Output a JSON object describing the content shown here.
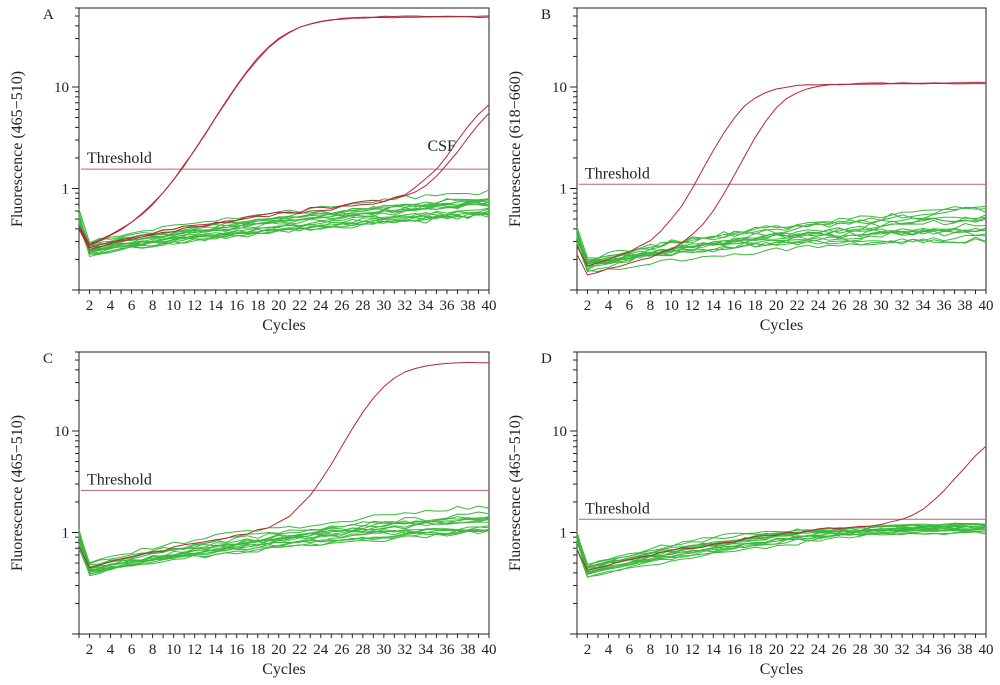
{
  "colors": {
    "positive": "#b02a3a",
    "negative": "#3cb83c",
    "threshold": "#c06070",
    "axis": "#222222"
  },
  "chart_data": [
    {
      "panel": "A",
      "type": "line",
      "xlabel": "Cycles",
      "ylabel": "Fluorescence (465−510)",
      "yscale": "log",
      "xlim": [
        1,
        40
      ],
      "ylim": [
        0.1,
        60
      ],
      "xticks": [
        "2",
        "4",
        "6",
        "8",
        "10",
        "12",
        "14",
        "16",
        "18",
        "20",
        "22",
        "24",
        "26",
        "28",
        "30",
        "32",
        "34",
        "36",
        "38",
        "40"
      ],
      "yticks": [
        "1",
        "10"
      ],
      "threshold": 1.55,
      "threshold_label": "Threshold",
      "annotation": "CSF",
      "positive": [
        {
          "base": 0.26,
          "slope": 0.065,
          "cap": 0.95,
          "amp": 48,
          "mid": 19,
          "k": 0.45
        },
        {
          "base": 0.25,
          "slope": 0.066,
          "cap": 0.97,
          "amp": 49,
          "mid": 19.2,
          "k": 0.44
        },
        {
          "base": 0.26,
          "slope": 0.066,
          "cap": 1.0,
          "amp": 9,
          "mid": 39,
          "k": 0.6
        },
        {
          "base": 0.25,
          "slope": 0.067,
          "cap": 1.05,
          "amp": 8,
          "mid": 39.5,
          "k": 0.6
        }
      ],
      "negative_count": 18,
      "neg_base": 0.26,
      "neg_slope_min": 0.03,
      "neg_slope_max": 0.06,
      "neg_cap_min": 0.7,
      "neg_cap_max": 1.5,
      "neg_noise": 0.04
    },
    {
      "panel": "B",
      "type": "line",
      "xlabel": "Cycles",
      "ylabel": "Fluorescence (618−660)",
      "yscale": "log",
      "xlim": [
        1,
        40
      ],
      "ylim": [
        0.1,
        60
      ],
      "xticks": [
        "2",
        "4",
        "6",
        "8",
        "10",
        "12",
        "14",
        "16",
        "18",
        "20",
        "22",
        "24",
        "26",
        "28",
        "30",
        "32",
        "34",
        "36",
        "38",
        "40"
      ],
      "yticks": [
        "1",
        "10"
      ],
      "threshold": 1.1,
      "threshold_label": "Threshold",
      "annotation": "",
      "positive": [
        {
          "base": 0.17,
          "slope": 0.07,
          "cap": 0.7,
          "amp": 10.2,
          "mid": 16.3,
          "k": 0.6
        },
        {
          "base": 0.14,
          "slope": 0.07,
          "cap": 0.6,
          "amp": 10.5,
          "mid": 19.6,
          "k": 0.6
        }
      ],
      "negative_count": 16,
      "neg_base": 0.18,
      "neg_slope_min": 0.03,
      "neg_slope_max": 0.07,
      "neg_cap_min": 0.2,
      "neg_cap_max": 1.05,
      "neg_noise": 0.06
    },
    {
      "panel": "C",
      "type": "line",
      "xlabel": "Cycles",
      "ylabel": "Fluorescence (465−510)",
      "yscale": "log",
      "xlim": [
        1,
        40
      ],
      "ylim": [
        0.1,
        60
      ],
      "xticks": [
        "2",
        "4",
        "6",
        "8",
        "10",
        "12",
        "14",
        "16",
        "18",
        "20",
        "22",
        "24",
        "26",
        "28",
        "30",
        "32",
        "34",
        "36",
        "38",
        "40"
      ],
      "yticks": [
        "1",
        "10"
      ],
      "threshold": 2.6,
      "threshold_label": "Threshold",
      "annotation": "",
      "positive": [
        {
          "base": 0.45,
          "slope": 0.07,
          "cap": 1.5,
          "amp": 46,
          "mid": 29.5,
          "k": 0.55
        }
      ],
      "negative_count": 16,
      "neg_base": 0.45,
      "neg_slope_min": 0.035,
      "neg_slope_max": 0.07,
      "neg_cap_min": 1.0,
      "neg_cap_max": 2.2,
      "neg_noise": 0.035
    },
    {
      "panel": "D",
      "type": "line",
      "xlabel": "Cycles",
      "ylabel": "Fluorescence (465−510)",
      "yscale": "log",
      "xlim": [
        1,
        40
      ],
      "ylim": [
        0.1,
        60
      ],
      "xticks": [
        "2",
        "4",
        "6",
        "8",
        "10",
        "12",
        "14",
        "16",
        "18",
        "20",
        "22",
        "24",
        "26",
        "28",
        "30",
        "32",
        "34",
        "36",
        "38",
        "40"
      ],
      "yticks": [
        "1",
        "10"
      ],
      "threshold": 1.35,
      "threshold_label": "Threshold",
      "annotation": "",
      "positive": [
        {
          "base": 0.42,
          "slope": 0.07,
          "cap": 1.1,
          "amp": 12,
          "mid": 40,
          "k": 0.5
        }
      ],
      "negative_count": 16,
      "neg_base": 0.42,
      "neg_slope_min": 0.05,
      "neg_slope_max": 0.08,
      "neg_cap_min": 0.9,
      "neg_cap_max": 1.2,
      "neg_noise": 0.025
    }
  ]
}
